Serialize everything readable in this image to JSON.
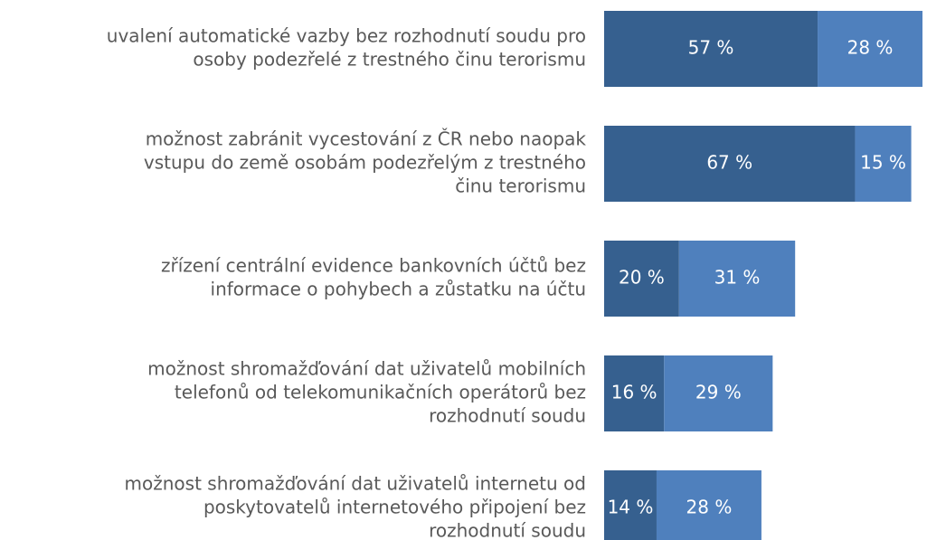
{
  "chart_data": {
    "type": "stacked-bar-horizontal",
    "categories": [
      [
        "uvalení automatické vazby bez rozhodnutí soudu pro",
        "osoby podezřelé z trestného činu terorismu"
      ],
      [
        "možnost zabránit vycestování z ČR nebo naopak",
        "vstupu do země osobám podezřelým z trestného",
        "činu terorismu"
      ],
      [
        "zřízení centrální evidence bankovních účtů bez",
        "informace o pohybech a zůstatku na účtu"
      ],
      [
        "možnost shromažďování dat uživatelů mobilních",
        "telefonů od telekomunikačních operátorů bez",
        "rozhodnutí soudu"
      ],
      [
        "možnost shromažďování dat uživatelů internetu od",
        "poskytovatelů internetového připojení bez",
        "rozhodnutí soudu"
      ]
    ],
    "series": [
      {
        "color": "#36608f",
        "values": [
          57,
          67,
          20,
          16,
          14
        ],
        "value_labels": [
          "57 %",
          "67 %",
          "20 %",
          "16 %",
          "14 %"
        ]
      },
      {
        "color": "#4f80bd",
        "values": [
          28,
          15,
          31,
          29,
          28
        ],
        "value_labels": [
          "28 %",
          "15 %",
          "31 %",
          "29 %",
          "28 %"
        ]
      }
    ]
  }
}
